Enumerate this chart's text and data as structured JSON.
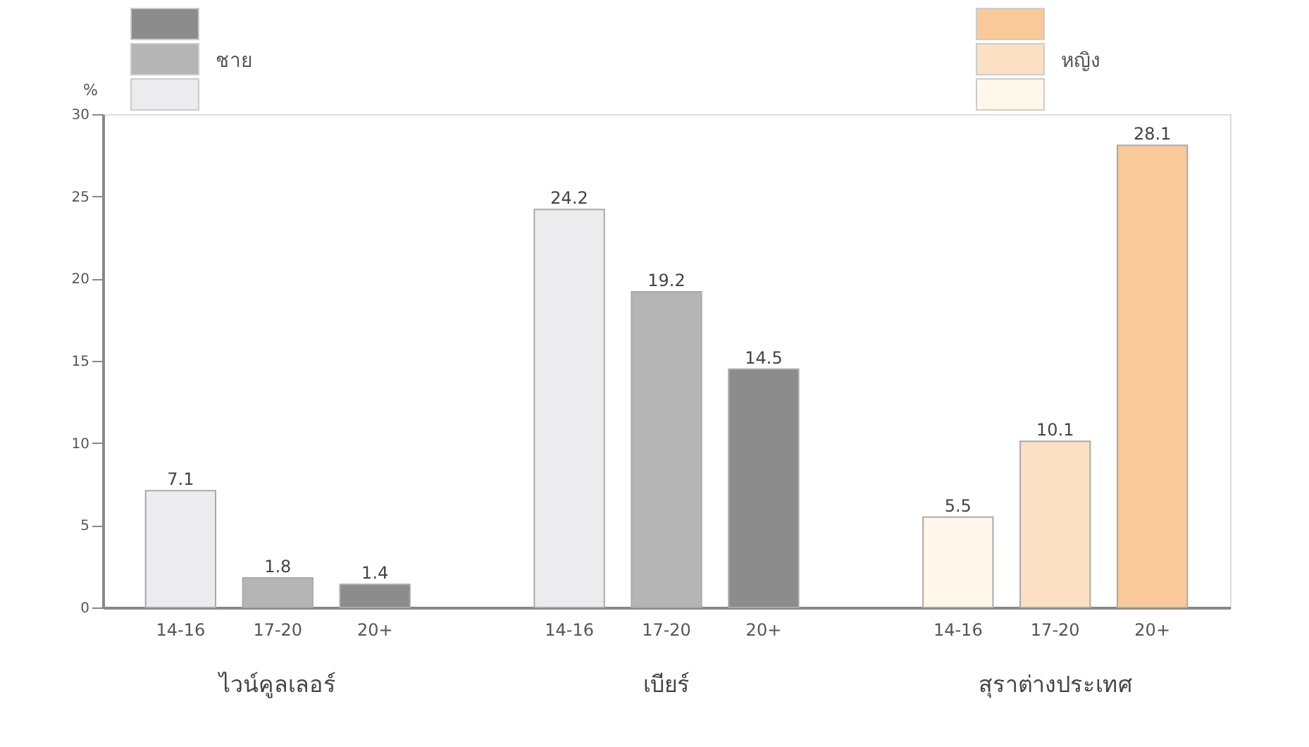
{
  "chart_data": {
    "type": "bar",
    "categories": [
      "14-16",
      "17-20",
      "20+",
      "14-16",
      "17-20",
      "20+",
      "14-16",
      "17-20",
      "20+"
    ],
    "series": [
      {
        "name": "ชาย",
        "values": [
          7.1,
          1.8,
          1.4,
          24.2,
          19.2,
          14.5,
          null,
          null,
          null
        ],
        "colors": [
          "#ececee",
          "#b5b5b5",
          "#8c8c8c",
          "#ececee",
          "#b5b5b5",
          "#8c8c8c",
          null,
          null,
          null
        ]
      },
      {
        "name": "หญิง",
        "values": [
          null,
          null,
          null,
          null,
          null,
          null,
          5.5,
          10.1,
          28.1
        ],
        "colors": [
          null,
          null,
          null,
          null,
          null,
          null,
          "#fff8ea",
          "#fbe0c4",
          "#f9c99a"
        ]
      }
    ],
    "ylabel": "%",
    "ylim": [
      0,
      30
    ],
    "yticks": [
      0,
      5,
      10,
      15,
      20,
      25,
      30
    ],
    "data_labels": true,
    "grid": false,
    "legend": "top",
    "annotations": [
      "ไวน์คูลเลอร์",
      "เบียร์",
      "สุราต่างประเทศ"
    ]
  }
}
